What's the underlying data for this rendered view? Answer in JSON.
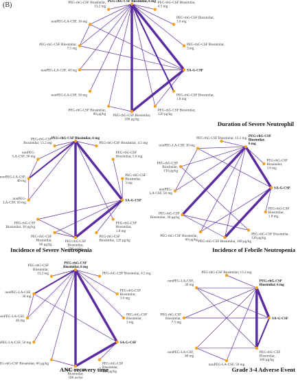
{
  "figure": {
    "panel_label": "(B)",
    "colors": {
      "node": "#f3a11c",
      "edge": "#5a2ca0"
    },
    "networks": [
      {
        "caption": "Duration of Severe Neutrophil",
        "nodes": [
          {
            "label": [
              "PEG-rhG-CSF Biosimilar, 6 mg"
            ],
            "bold": true
          },
          {
            "label": [
              "PEG-rhG-CSF Biosimilar,",
              "4.5 mg"
            ]
          },
          {
            "label": [
              "PEG-rhG-CSF Biosimilar,",
              "3.6 mg"
            ]
          },
          {
            "label": [
              "PEG-rhG-CSF Biosimilar,",
              "3 mg"
            ]
          },
          {
            "label": [
              "SA-G-CSF"
            ],
            "bold": true
          },
          {
            "label": [
              "PEG-rhG-CSF Biosimilar,",
              "1.8 mg"
            ]
          },
          {
            "label": [
              "PEG-rhG-CSF Biosimilar,",
              "120 μg/kg"
            ]
          },
          {
            "label": [
              "PEG-rhG-CSF Biosimilar,",
              "100 μg/kg"
            ]
          },
          {
            "label": [
              "PEG-rhG-CSF Biosimilar,",
              "60 μg/kg"
            ]
          },
          {
            "label": [
              "nonPEG-LA-CSF, 50 mg"
            ]
          },
          {
            "label": [
              "nonPEG-LA-CSF, 40 mg"
            ]
          },
          {
            "label": [
              "PEG-rhG-CSF Biosimilar,",
              "7.5 mg"
            ]
          },
          {
            "label": [
              "nonPEG-LA-CSF, 30 mg"
            ]
          },
          {
            "label": [
              "PEG-rhG-CSF Biosimilar,",
              "13.2 mg"
            ]
          }
        ],
        "edges": [
          [
            0,
            13,
            1
          ],
          [
            0,
            12,
            1
          ],
          [
            0,
            11,
            1
          ],
          [
            0,
            10,
            1
          ],
          [
            0,
            9,
            1
          ],
          [
            0,
            8,
            1
          ],
          [
            0,
            7,
            3
          ],
          [
            0,
            6,
            1
          ],
          [
            0,
            5,
            2
          ],
          [
            0,
            4,
            3
          ],
          [
            0,
            3,
            1
          ],
          [
            0,
            2,
            1
          ],
          [
            0,
            1,
            1
          ],
          [
            4,
            7,
            3
          ],
          [
            4,
            6,
            1
          ],
          [
            4,
            12,
            1
          ],
          [
            4,
            11,
            1
          ],
          [
            7,
            8,
            1
          ],
          [
            11,
            12,
            1
          ],
          [
            4,
            10,
            1
          ]
        ]
      },
      {
        "caption": "Incidence of Severe Neutropenia",
        "nodes": [
          {
            "label": [
              "PEG-rhG-CSF Biosimilar, 6 mg"
            ],
            "bold": true
          },
          {
            "label": [
              "PEG-rhG-CSF Biosimilar, 4.5 mg"
            ]
          },
          {
            "label": [
              "PEG-rhG-CSF",
              "Biosimilar, 3.6 mg"
            ]
          },
          {
            "label": [
              "PEG-rhG-CSF",
              "Biosimilar,",
              "3 mg"
            ]
          },
          {
            "label": [
              "SA-G-CSF"
            ],
            "bold": true
          },
          {
            "label": [
              "PEG-rhG-CSF",
              "Biosimilar,",
              "1.8 mg"
            ]
          },
          {
            "label": [
              "PEG-rhG-CSF",
              "Biosimilar, 120 μg/kg"
            ]
          },
          {
            "label": [
              "PEG-rhG-CSF",
              "Biosimilar,",
              "100 μg/kg"
            ]
          },
          {
            "label": [
              "PEG-rhG-CSF",
              "Biosimilar,",
              "60 μg/kg"
            ]
          },
          {
            "label": [
              "PEG-rhG-CSF",
              "Biosimilar, 30 μg/kg"
            ]
          },
          {
            "label": [
              "nonPEG-",
              "LA-CSF, 50 mg"
            ]
          },
          {
            "label": [
              "nonPEG-LA-CSF,",
              "40 mg"
            ]
          },
          {
            "label": [
              "nonPEG-",
              "LA-CSF, 30 mg"
            ]
          },
          {
            "label": [
              "PEG-rhG-CSF",
              "Biosimilar, 13.2 mg"
            ]
          }
        ],
        "edges": [
          [
            0,
            13,
            1
          ],
          [
            0,
            12,
            1
          ],
          [
            0,
            11,
            2
          ],
          [
            0,
            10,
            1
          ],
          [
            0,
            7,
            3
          ],
          [
            0,
            4,
            3
          ],
          [
            0,
            5,
            1
          ],
          [
            0,
            1,
            1
          ],
          [
            4,
            7,
            3
          ],
          [
            4,
            8,
            1
          ],
          [
            4,
            9,
            1
          ],
          [
            4,
            6,
            1
          ],
          [
            4,
            2,
            1
          ],
          [
            4,
            3,
            1
          ],
          [
            7,
            8,
            1
          ],
          [
            7,
            9,
            1
          ],
          [
            11,
            12,
            1
          ],
          [
            10,
            11,
            1
          ]
        ]
      },
      {
        "caption": "Incidence of Febrile Neutropenia",
        "nodes": [
          {
            "label": [
              "PEG-rhG-CSF",
              "Biosimilar,",
              "6 mg"
            ],
            "bold": true
          },
          {
            "label": [
              "PEG-rhG-CSF",
              "Biosimilar,",
              "3.6 mg"
            ]
          },
          {
            "label": [
              "SA-G-CSF"
            ],
            "bold": true
          },
          {
            "label": [
              "PEG-rhG-CSF",
              "Biosimilar,",
              "1.8 mg"
            ]
          },
          {
            "label": [
              "PEG-rhG-CSF Biosimilar,",
              "120 μg/kg"
            ]
          },
          {
            "label": [
              "PEG-rhG-CSF Biosimilar, 100 μg/kg"
            ]
          },
          {
            "label": [
              "PEG-rhG-CSF Biosimilar,",
              "60 μg/kg"
            ]
          },
          {
            "label": [
              "PEG-rhG-CSF",
              "Biosimilar, 30 μg/kg"
            ]
          },
          {
            "label": [
              "nonPEG-",
              "LA-CSF, 50 mg"
            ]
          },
          {
            "label": [
              "PEG-rhG-CSF",
              "Biosimilar,",
              "150 μg/kg"
            ]
          },
          {
            "label": [
              "nonPEG-LA-CSF, 30 mg"
            ]
          },
          {
            "label": [
              "PEG-rhG-CSF Biosimilar, 13.2 mg"
            ]
          }
        ],
        "edges": [
          [
            0,
            11,
            1
          ],
          [
            0,
            10,
            1
          ],
          [
            0,
            9,
            1
          ],
          [
            0,
            8,
            1
          ],
          [
            0,
            7,
            3
          ],
          [
            0,
            6,
            1
          ],
          [
            0,
            5,
            1
          ],
          [
            0,
            2,
            3
          ],
          [
            0,
            1,
            1
          ],
          [
            2,
            5,
            3
          ],
          [
            2,
            6,
            1
          ],
          [
            2,
            3,
            1
          ],
          [
            2,
            10,
            1
          ],
          [
            5,
            7,
            1
          ],
          [
            8,
            10,
            1
          ],
          [
            9,
            4,
            1
          ],
          [
            7,
            4,
            1
          ]
        ]
      },
      {
        "caption": "ANC recovery time",
        "nodes": [
          {
            "label": [
              "PEG-rhG-CSF",
              "Biosimilar, 6 mg"
            ],
            "bold": true
          },
          {
            "label": [
              "PEG-rhG-CSF Biosimilar, 4.5 mg"
            ]
          },
          {
            "label": [
              "PEG-rhG-CSF",
              "Biosimilar,",
              "3.6 mg"
            ]
          },
          {
            "label": [
              "PEG-rhG-CSF",
              "Biosimilar,",
              "3 mg"
            ]
          },
          {
            "label": [
              "SA-G-CSF"
            ],
            "bold": true
          },
          {
            "label": [
              "PEG-rhG-CSF",
              "Biosimilar,",
              "120 μg/kg"
            ]
          },
          {
            "label": [
              "PEG-rhG-CSF",
              "Biosimilar,",
              "100 μg/kg"
            ]
          },
          {
            "label": [
              "PEG-rhG-CSF Biosimilar, 60 μg/kg"
            ]
          },
          {
            "label": [
              "nonPEG-LA-CSF, 50 mg"
            ]
          },
          {
            "label": [
              "nonPEG-LA-CSF,",
              "40 mg"
            ]
          },
          {
            "label": [
              "nonPEG-LA-CSF,",
              "30 mg"
            ]
          },
          {
            "label": [
              "PEG-rhG-CSF",
              "Biosimilar,",
              "13.2 mg"
            ]
          }
        ],
        "edges": [
          [
            0,
            11,
            1
          ],
          [
            0,
            10,
            2
          ],
          [
            0,
            9,
            1
          ],
          [
            0,
            8,
            1
          ],
          [
            0,
            7,
            1
          ],
          [
            0,
            6,
            3
          ],
          [
            0,
            4,
            3
          ],
          [
            0,
            3,
            1
          ],
          [
            0,
            2,
            1
          ],
          [
            0,
            1,
            1
          ],
          [
            4,
            6,
            3
          ],
          [
            4,
            5,
            1
          ],
          [
            4,
            10,
            1
          ],
          [
            6,
            7,
            1
          ],
          [
            9,
            10,
            1
          ]
        ]
      },
      {
        "caption": "Grade 3-4 Adverse Event",
        "nodes": [
          {
            "label": [
              "PEG-rhG-CSF Biosimilar, 13.2 mg"
            ]
          },
          {
            "label": [
              "PEG-rhG-CSF",
              "Biosimilar, 6 mg"
            ],
            "bold": true
          },
          {
            "label": [
              "SA-G-CSF"
            ],
            "bold": true
          },
          {
            "label": [
              "PEG-rhG-CSF",
              "Biosimilar,",
              "100 μg/kg"
            ]
          },
          {
            "label": [
              "nonPEG-LA-CSF, 50 mg"
            ]
          },
          {
            "label": [
              "nonPEG-LA-CSF,",
              "40 mg"
            ]
          },
          {
            "label": [
              "PEG-rhG-CSF",
              "Biosimilar,",
              "7.5 mg"
            ]
          },
          {
            "label": [
              "nonPEG-LA-CSF,",
              "30 mg"
            ]
          }
        ],
        "edges": [
          [
            1,
            0,
            1
          ],
          [
            1,
            7,
            1
          ],
          [
            1,
            6,
            1
          ],
          [
            1,
            5,
            1
          ],
          [
            1,
            4,
            1
          ],
          [
            1,
            3,
            3
          ],
          [
            1,
            2,
            3
          ],
          [
            2,
            3,
            2
          ],
          [
            2,
            7,
            1
          ],
          [
            2,
            6,
            1
          ],
          [
            4,
            5,
            1
          ],
          [
            7,
            3,
            1
          ],
          [
            5,
            3,
            1
          ]
        ]
      }
    ]
  }
}
